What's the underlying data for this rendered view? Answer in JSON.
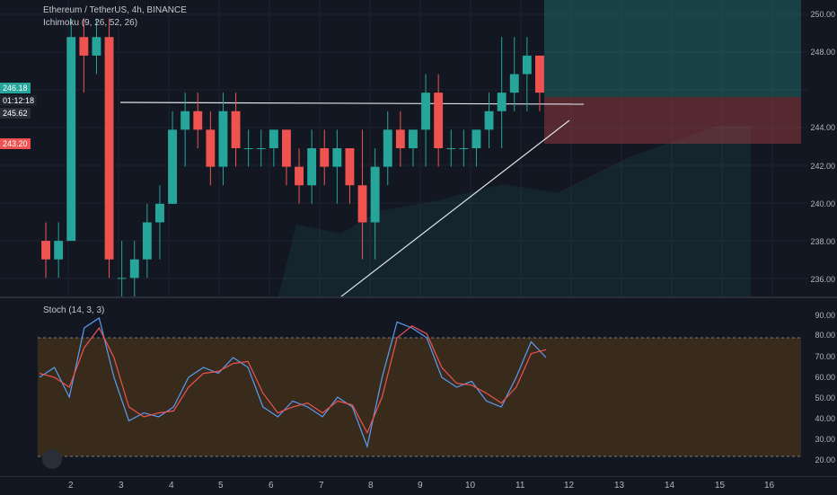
{
  "symbol": "Ethereum / TetherUS, 4h, BINANCE",
  "indicators": {
    "ichimoku": "Ichimoku (9, 26, 52, 26)",
    "stoch": "Stoch (14, 3, 3)"
  },
  "price_axis": [
    "250.00",
    "248.00",
    "244.00",
    "242.00",
    "240.00",
    "238.00",
    "236.00"
  ],
  "price_tags": {
    "current": "246.18",
    "countdown": "01:12:18",
    "level1": "245.62",
    "level2": "243.20"
  },
  "stoch_axis": [
    "90.00",
    "80.00",
    "70.00",
    "60.00",
    "50.00",
    "40.00",
    "30.00",
    "20.00"
  ],
  "time_axis": [
    "2",
    "3",
    "4",
    "5",
    "6",
    "7",
    "8",
    "9",
    "10",
    "11",
    "12",
    "13",
    "14",
    "15",
    "16"
  ],
  "colors": {
    "bull": "#26a69a",
    "bear": "#ef5350",
    "background": "#131722"
  },
  "chart_data": {
    "type": "candlestick",
    "candles": [
      [
        238,
        239,
        236,
        237
      ],
      [
        237,
        239,
        236,
        238
      ],
      [
        238,
        250,
        238,
        249
      ],
      [
        249,
        250,
        246,
        248
      ],
      [
        248,
        250,
        247,
        249
      ],
      [
        249,
        250,
        236,
        237
      ],
      [
        236,
        238,
        235,
        236
      ],
      [
        236,
        238,
        235,
        237
      ],
      [
        237,
        240,
        236,
        239
      ],
      [
        239,
        241,
        237,
        240
      ],
      [
        240,
        245,
        240,
        244
      ],
      [
        244,
        246,
        242,
        245
      ],
      [
        245,
        246,
        243,
        244
      ],
      [
        244,
        245,
        241,
        242
      ],
      [
        242,
        246,
        241,
        245
      ],
      [
        245,
        246,
        242,
        243
      ],
      [
        243,
        244,
        242,
        243
      ],
      [
        243,
        244,
        242,
        243
      ],
      [
        243,
        244,
        242,
        244
      ],
      [
        244,
        244,
        241,
        242
      ],
      [
        242,
        243,
        240,
        241
      ],
      [
        241,
        244,
        240,
        243
      ],
      [
        243,
        244,
        241,
        242
      ],
      [
        242,
        244,
        240,
        243
      ],
      [
        243,
        243,
        240,
        241
      ],
      [
        241,
        244,
        237,
        239
      ],
      [
        239,
        243,
        237,
        242
      ],
      [
        242,
        245,
        241,
        244
      ],
      [
        244,
        245,
        242,
        243
      ],
      [
        243,
        244,
        242,
        244
      ],
      [
        244,
        247,
        242,
        246
      ],
      [
        246,
        247,
        242,
        243
      ],
      [
        243,
        244,
        242,
        243
      ],
      [
        243,
        244,
        242,
        243
      ],
      [
        243,
        244,
        242,
        244
      ],
      [
        244,
        246,
        243,
        245
      ],
      [
        245,
        249,
        243,
        246
      ],
      [
        246,
        249,
        245,
        247
      ],
      [
        247,
        249,
        245,
        248
      ],
      [
        248,
        248,
        245,
        246
      ]
    ],
    "ymin": 235,
    "ymax": 251,
    "stoch_k": [
      60,
      65,
      50,
      85,
      90,
      60,
      38,
      42,
      40,
      45,
      60,
      65,
      62,
      70,
      65,
      45,
      40,
      48,
      45,
      40,
      50,
      45,
      25,
      60,
      88,
      85,
      80,
      60,
      55,
      58,
      48,
      45,
      60,
      78,
      70
    ],
    "stoch_d": [
      62,
      60,
      55,
      75,
      85,
      70,
      45,
      40,
      42,
      43,
      55,
      62,
      63,
      67,
      68,
      52,
      42,
      45,
      47,
      42,
      48,
      46,
      32,
      50,
      80,
      86,
      82,
      65,
      57,
      56,
      52,
      47,
      55,
      72,
      74
    ]
  }
}
